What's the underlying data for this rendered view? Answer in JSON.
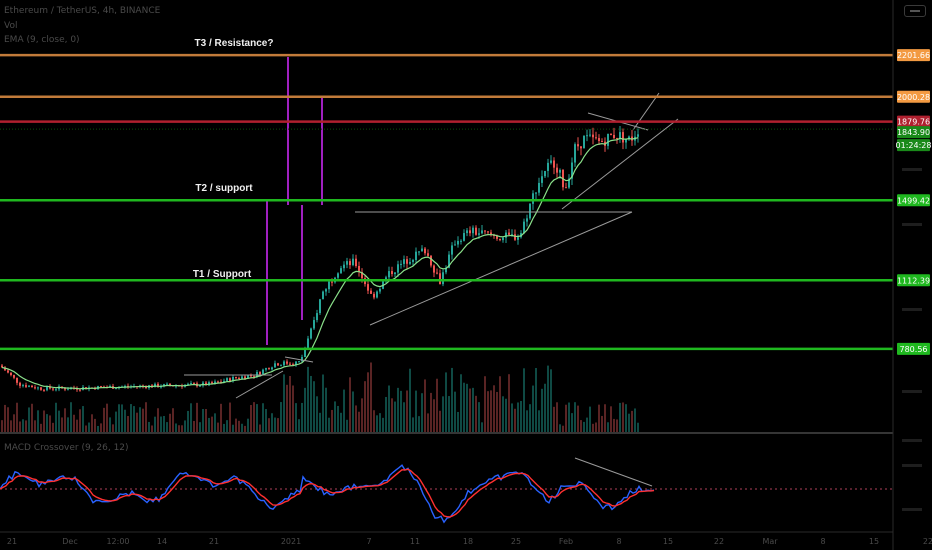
{
  "header": {
    "symbol_line": "Ethereum / TetherUS, 4h, BINANCE",
    "volume_label": "Vol",
    "ema_label": "EMA (9, close, 0)"
  },
  "annotations": {
    "t3": "T3 / Resistance?",
    "t2": "T2 / support",
    "t1": "T1 / Support"
  },
  "chart_data": {
    "type": "candlestick",
    "symbol": "Ethereum / TetherUS",
    "timeframe": "4h",
    "exchange": "BINANCE",
    "x_tick_labels": [
      "21",
      "Dec",
      "12:00",
      "14",
      "21",
      "2021",
      "7",
      "11",
      "18",
      "25",
      "Feb",
      "8",
      "15",
      "22",
      "Mar",
      "8",
      "15",
      "22"
    ],
    "price_levels": [
      {
        "label": "2201.66",
        "value": 2201.66,
        "color": "#c27b3a",
        "badge_color": "#f39a42"
      },
      {
        "label": "2000.28",
        "value": 2000.28,
        "color": "#c27b3a",
        "badge_color": "#f39a42"
      },
      {
        "label": "1879.76",
        "value": 1879.76,
        "color": "#b0202f",
        "badge_color": "#b0202f"
      },
      {
        "label": "1499.42",
        "value": 1499.42,
        "color": "#1fb81f",
        "badge_color": "#1fb81f"
      },
      {
        "label": "1112.39",
        "value": 1112.39,
        "color": "#1fb81f",
        "badge_color": "#1fb81f"
      },
      {
        "label": "780.56",
        "value": 780.56,
        "color": "#1fb81f",
        "badge_color": "#1fb81f"
      }
    ],
    "last_price": {
      "label": "1843.90",
      "value": 1843.9
    },
    "countdown": "01:24:28",
    "indicator": {
      "name": "MACD Crossover (9, 26, 12)"
    },
    "colors": {
      "up": "#26a69a",
      "down": "#ef5350",
      "ema": "#8ae08a",
      "macd": "#2962ff",
      "signal": "#ff3030",
      "vertical_marker": "#a020c0",
      "trendline": "#9a9a9a"
    },
    "grid": false
  }
}
